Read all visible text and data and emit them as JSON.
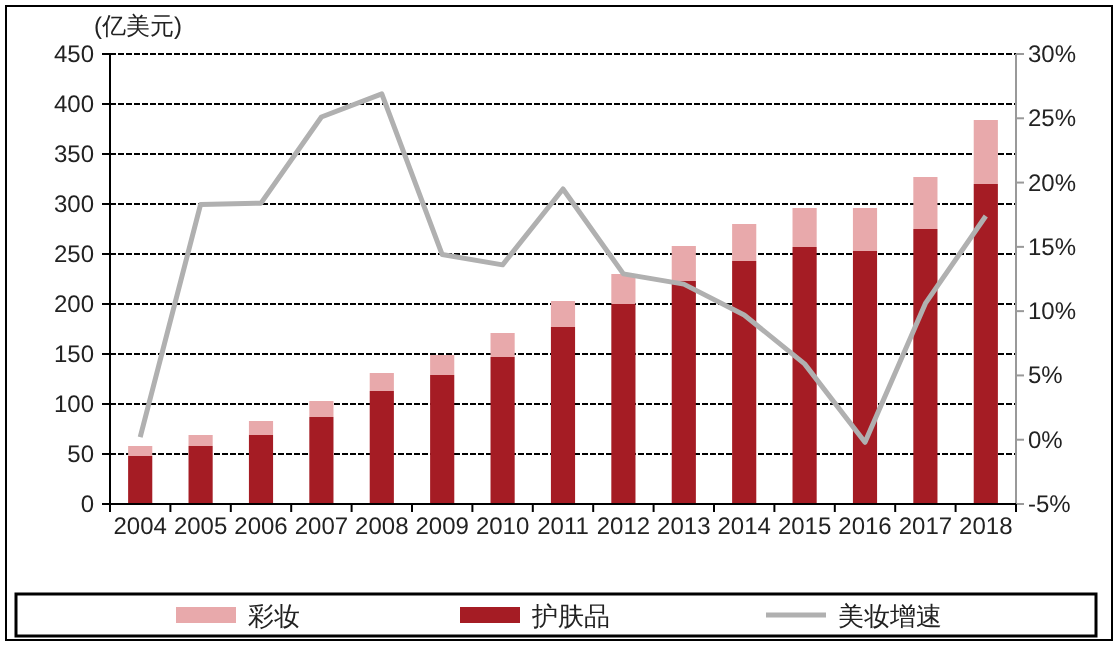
{
  "chart_data": {
    "type": "bar",
    "stacked": true,
    "ylabel": "(亿美元)",
    "categories": [
      "2004",
      "2005",
      "2006",
      "2007",
      "2008",
      "2009",
      "2010",
      "2011",
      "2012",
      "2013",
      "2014",
      "2015",
      "2016",
      "2017",
      "2018"
    ],
    "series": [
      {
        "name": "护肤品",
        "color": "#a51c24",
        "values": [
          48,
          58,
          69,
          87,
          113,
          129,
          147,
          177,
          200,
          223,
          243,
          257,
          253,
          275,
          320
        ]
      },
      {
        "name": "彩妆",
        "color": "#e8a9ab",
        "values": [
          10,
          11,
          14,
          16,
          18,
          20,
          24,
          26,
          30,
          35,
          37,
          39,
          43,
          52,
          64
        ]
      },
      {
        "name": "美妆增速",
        "type": "line",
        "axis": "y2",
        "color": "#b0b0b0",
        "values": [
          0.2,
          18.3,
          18.4,
          25.1,
          26.9,
          14.4,
          13.6,
          19.5,
          12.9,
          12.1,
          9.7,
          5.9,
          -0.2,
          10.6,
          17.4
        ]
      }
    ],
    "ylim": [
      0,
      450
    ],
    "yticks": [
      0,
      50,
      100,
      150,
      200,
      250,
      300,
      350,
      400,
      450
    ],
    "y2lim": [
      -5,
      30
    ],
    "y2ticks": [
      {
        "value": -5,
        "label": "-5%"
      },
      {
        "value": 0,
        "label": "0%"
      },
      {
        "value": 5,
        "label": "5%"
      },
      {
        "value": 10,
        "label": "10%"
      },
      {
        "value": 15,
        "label": "15%"
      },
      {
        "value": 20,
        "label": "20%"
      },
      {
        "value": 25,
        "label": "25%"
      },
      {
        "value": 30,
        "label": "30%"
      }
    ],
    "grid": "y",
    "legend": "bottom",
    "marker": "none",
    "line_style": "solid"
  }
}
